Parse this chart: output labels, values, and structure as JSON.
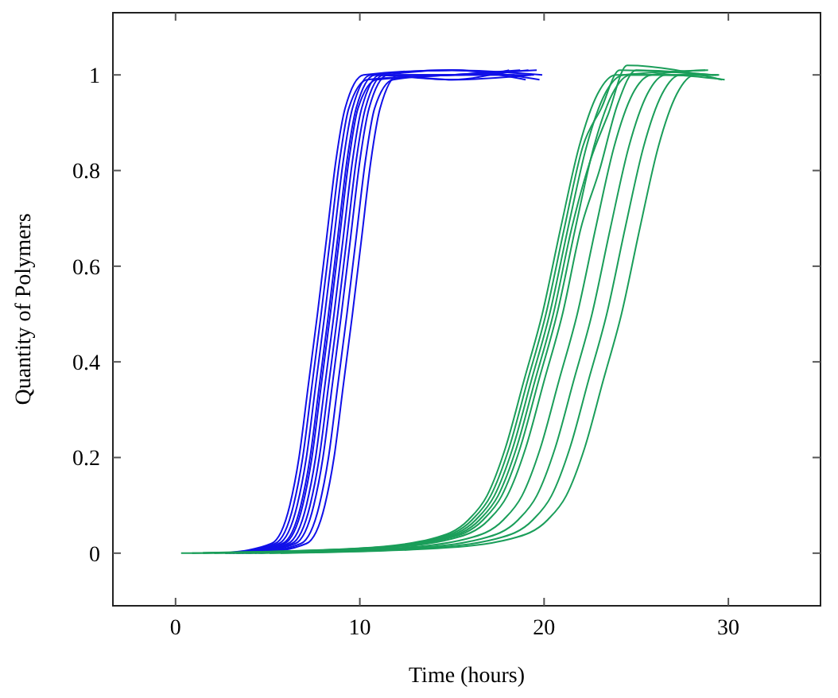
{
  "chart_data": {
    "type": "line",
    "xlabel": "Time (hours)",
    "ylabel": "Quantity of Polymers",
    "xlim": [
      -3.4,
      35
    ],
    "ylim": [
      -0.11,
      1.13
    ],
    "xticks": [
      0,
      10,
      20,
      30
    ],
    "yticks": [
      0,
      0.2,
      0.4,
      0.6,
      0.8,
      1
    ],
    "series": [
      {
        "color": "#1010e8",
        "x": [
          2.7,
          5.2,
          6.2,
          6.7,
          7.2,
          7.7,
          8.2,
          8.7,
          9.2,
          10.2,
          15,
          19.9
        ],
        "values": [
          0,
          0.02,
          0.1,
          0.2,
          0.35,
          0.5,
          0.66,
          0.82,
          0.93,
          1.0,
          1.01,
          1.0
        ]
      },
      {
        "color": "#1010e8",
        "x": [
          2.9,
          5.4,
          6.4,
          6.9,
          7.4,
          7.9,
          8.4,
          8.9,
          9.4,
          10.4,
          15,
          19.6
        ],
        "values": [
          0,
          0.02,
          0.1,
          0.2,
          0.35,
          0.5,
          0.66,
          0.82,
          0.93,
          0.99,
          1.0,
          1.01
        ]
      },
      {
        "color": "#1010e8",
        "x": [
          3.1,
          5.6,
          6.6,
          7.1,
          7.6,
          8.1,
          8.6,
          9.1,
          9.6,
          10.6,
          15,
          19.3
        ],
        "values": [
          0,
          0.02,
          0.1,
          0.2,
          0.35,
          0.5,
          0.66,
          0.82,
          0.93,
          1.0,
          0.99,
          1.0
        ]
      },
      {
        "color": "#1010e8",
        "x": [
          3.3,
          5.8,
          6.8,
          7.3,
          7.8,
          8.3,
          8.8,
          9.3,
          9.8,
          10.8,
          15,
          19.0
        ],
        "values": [
          0,
          0.02,
          0.1,
          0.2,
          0.35,
          0.5,
          0.66,
          0.82,
          0.93,
          1.0,
          1.01,
          0.99
        ]
      },
      {
        "color": "#1010e8",
        "x": [
          3.4,
          5.9,
          6.9,
          7.4,
          7.9,
          8.4,
          8.9,
          9.4,
          9.9,
          10.9,
          15,
          18.7
        ],
        "values": [
          0,
          0.02,
          0.1,
          0.2,
          0.35,
          0.5,
          0.66,
          0.82,
          0.93,
          0.99,
          1.0,
          1.01
        ]
      },
      {
        "color": "#1010e8",
        "x": [
          3.6,
          6.1,
          7.1,
          7.6,
          8.1,
          8.6,
          9.1,
          9.6,
          10.1,
          11.1,
          15,
          18.4
        ],
        "values": [
          0,
          0.02,
          0.1,
          0.2,
          0.35,
          0.5,
          0.66,
          0.82,
          0.93,
          1.0,
          1.0,
          1.0
        ]
      },
      {
        "color": "#1010e8",
        "x": [
          3.8,
          6.3,
          7.3,
          7.8,
          8.3,
          8.8,
          9.3,
          9.8,
          10.3,
          11.3,
          15,
          18.1
        ],
        "values": [
          0,
          0.02,
          0.1,
          0.2,
          0.35,
          0.5,
          0.66,
          0.82,
          0.93,
          1.0,
          0.99,
          1.01
        ]
      },
      {
        "color": "#1010e8",
        "x": [
          4.0,
          6.5,
          7.5,
          8.0,
          8.5,
          9.0,
          9.5,
          10.0,
          10.5,
          11.5,
          15,
          19.75
        ],
        "values": [
          0,
          0.02,
          0.1,
          0.2,
          0.35,
          0.5,
          0.66,
          0.82,
          0.93,
          1.0,
          1.01,
          0.99
        ]
      },
      {
        "color": "#1010e8",
        "x": [
          4.3,
          6.8,
          7.8,
          8.3,
          8.8,
          9.3,
          9.8,
          10.3,
          10.8,
          11.8,
          15,
          19.45
        ],
        "values": [
          0,
          0.02,
          0.1,
          0.2,
          0.35,
          0.5,
          0.66,
          0.82,
          0.93,
          0.99,
          1.0,
          1.0
        ]
      },
      {
        "color": "#1010e8",
        "x": [
          4.6,
          7.1,
          8.1,
          8.6,
          9.1,
          9.6,
          10.1,
          10.6,
          11.1,
          12.1,
          15,
          19.15
        ],
        "values": [
          0,
          0.02,
          0.1,
          0.2,
          0.35,
          0.5,
          0.66,
          0.82,
          0.93,
          1.0,
          1.0,
          1.01
        ]
      },
      {
        "color": "#1b9e5a",
        "x": [
          0.3,
          9.9,
          13.9,
          15.9,
          16.9,
          17.9,
          18.9,
          19.9,
          20.9,
          21.9,
          22.9,
          23.9,
          29.5
        ],
        "values": [
          0,
          0.01,
          0.03,
          0.07,
          0.12,
          0.22,
          0.36,
          0.5,
          0.68,
          0.85,
          0.96,
          1.0,
          1.0
        ]
      },
      {
        "color": "#1b9e5a",
        "x": [
          0.9,
          10.1,
          14.1,
          16.1,
          17.1,
          18.1,
          19.1,
          20.1,
          21.1,
          22.1,
          23.1,
          24.1,
          29.2
        ],
        "values": [
          0,
          0.01,
          0.03,
          0.07,
          0.12,
          0.22,
          0.36,
          0.5,
          0.68,
          0.85,
          0.93,
          1.01,
          1.0
        ]
      },
      {
        "color": "#1b9e5a",
        "x": [
          1.5,
          10.3,
          14.3,
          16.3,
          17.3,
          18.3,
          19.3,
          20.3,
          21.3,
          22.3,
          23.3,
          24.3,
          28.9
        ],
        "values": [
          0,
          0.01,
          0.03,
          0.07,
          0.12,
          0.22,
          0.36,
          0.5,
          0.68,
          0.85,
          0.96,
          1.0,
          1.01
        ]
      },
      {
        "color": "#1b9e5a",
        "x": [
          2.1,
          10.5,
          14.5,
          16.5,
          17.5,
          18.5,
          19.5,
          20.5,
          21.5,
          22.5,
          23.5,
          24.5,
          29.65
        ],
        "values": [
          0,
          0.01,
          0.03,
          0.07,
          0.12,
          0.22,
          0.36,
          0.5,
          0.68,
          0.82,
          0.92,
          1.02,
          0.99
        ]
      },
      {
        "color": "#1b9e5a",
        "x": [
          2.7,
          10.7,
          14.7,
          16.7,
          17.7,
          18.7,
          19.7,
          20.7,
          21.7,
          22.7,
          23.7,
          24.7,
          29.35
        ],
        "values": [
          0,
          0.01,
          0.03,
          0.07,
          0.12,
          0.22,
          0.36,
          0.5,
          0.68,
          0.85,
          0.96,
          1.0,
          1.0
        ]
      },
      {
        "color": "#1b9e5a",
        "x": [
          3.3,
          11,
          15,
          17,
          18,
          19,
          20,
          21,
          22,
          23,
          24,
          25,
          29.05
        ],
        "values": [
          0,
          0.01,
          0.03,
          0.07,
          0.12,
          0.22,
          0.36,
          0.5,
          0.68,
          0.8,
          0.94,
          1.01,
          1.0
        ]
      },
      {
        "color": "#1b9e5a",
        "x": [
          3.9,
          11.8,
          15.8,
          17.8,
          18.8,
          19.8,
          20.8,
          21.8,
          22.8,
          23.8,
          24.8,
          25.8,
          28.75
        ],
        "values": [
          0,
          0.01,
          0.03,
          0.07,
          0.12,
          0.22,
          0.36,
          0.5,
          0.68,
          0.85,
          0.96,
          1.0,
          1.01
        ]
      },
      {
        "color": "#1b9e5a",
        "x": [
          4.5,
          12.6,
          16.6,
          18.6,
          19.6,
          20.6,
          21.6,
          22.6,
          23.6,
          24.6,
          25.6,
          26.6,
          29.8
        ],
        "values": [
          0,
          0.01,
          0.03,
          0.07,
          0.12,
          0.22,
          0.36,
          0.5,
          0.68,
          0.85,
          0.96,
          1.0,
          0.99
        ]
      },
      {
        "color": "#1b9e5a",
        "x": [
          5.1,
          13.4,
          17.4,
          19.4,
          20.4,
          21.4,
          22.4,
          23.4,
          24.4,
          25.4,
          26.4,
          27.4,
          28.6
        ],
        "values": [
          0,
          0.01,
          0.03,
          0.07,
          0.12,
          0.22,
          0.36,
          0.5,
          0.68,
          0.85,
          0.96,
          1.0,
          1.0
        ]
      },
      {
        "color": "#1b9e5a",
        "x": [
          5.7,
          14.2,
          18.2,
          20.2,
          21.2,
          22.2,
          23.2,
          24.2,
          25.2,
          26.2,
          27.2,
          28.2,
          29.45
        ],
        "values": [
          0,
          0.01,
          0.03,
          0.07,
          0.12,
          0.22,
          0.36,
          0.5,
          0.68,
          0.85,
          0.96,
          1.0,
          1.0
        ]
      }
    ]
  }
}
